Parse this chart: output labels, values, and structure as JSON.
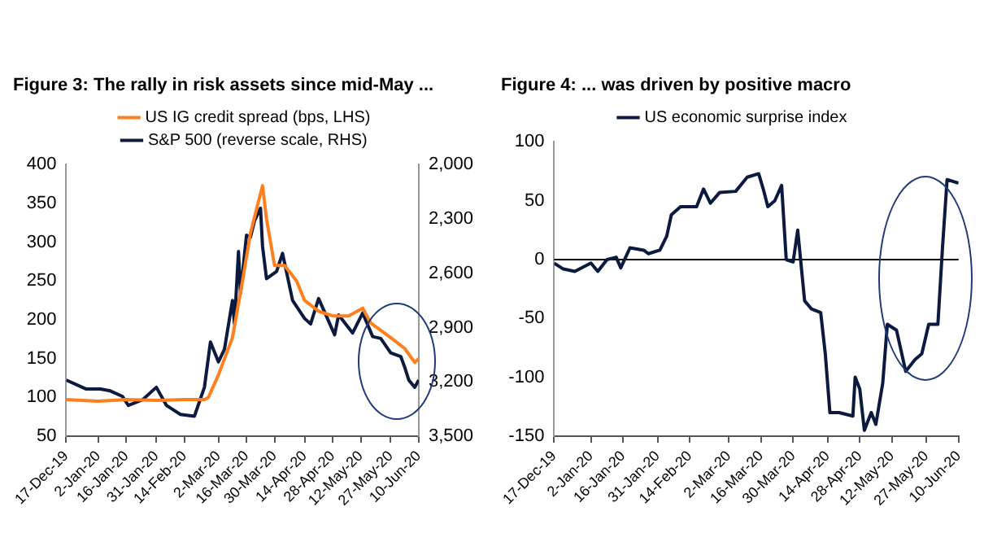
{
  "chart_data": [
    {
      "type": "line",
      "title": "Figure 3: The rally in risk assets since mid-May ...",
      "legend": "top",
      "grid": false,
      "marker": "none",
      "line_style": "solid",
      "xlim": [
        "2019-12-17",
        "2020-06-10"
      ],
      "xticks": [
        {
          "value": "2019-12-17",
          "label": "17-Dec-19"
        },
        {
          "value": "2020-01-02",
          "label": "2-Jan-20"
        },
        {
          "value": "2020-01-16",
          "label": "16-Jan-20"
        },
        {
          "value": "2020-01-31",
          "label": "31-Jan-20"
        },
        {
          "value": "2020-02-14",
          "label": "14-Feb-20"
        },
        {
          "value": "2020-03-02",
          "label": "2-Mar-20"
        },
        {
          "value": "2020-03-16",
          "label": "16-Mar-20"
        },
        {
          "value": "2020-03-30",
          "label": "30-Mar-20"
        },
        {
          "value": "2020-04-14",
          "label": "14-Apr-20"
        },
        {
          "value": "2020-04-28",
          "label": "28-Apr-20"
        },
        {
          "value": "2020-05-12",
          "label": "12-May-20"
        },
        {
          "value": "2020-05-27",
          "label": "27-May-20"
        },
        {
          "value": "2020-06-10",
          "label": "10-Jun-20"
        }
      ],
      "ylim": [
        50,
        400
      ],
      "yticks": [
        50,
        100,
        150,
        200,
        250,
        300,
        350,
        400
      ],
      "y2lim": [
        3500,
        2000
      ],
      "y2ticks": [
        {
          "value": 2000,
          "label": "2,000"
        },
        {
          "value": 2300,
          "label": "2,300"
        },
        {
          "value": 2600,
          "label": "2,600"
        },
        {
          "value": 2900,
          "label": "2,900"
        },
        {
          "value": 3200,
          "label": "3,200"
        },
        {
          "value": 3500,
          "label": "3,500"
        }
      ],
      "series": [
        {
          "name": "US IG credit spread (bps, LHS)",
          "color": "#ff7f1e",
          "x": [
            "2019-12-17",
            "2020-01-02",
            "2020-01-16",
            "2020-02-01",
            "2020-02-14",
            "2020-02-24",
            "2020-02-26",
            "2020-03-02",
            "2020-03-09",
            "2020-03-14",
            "2020-03-18",
            "2020-03-24",
            "2020-03-26",
            "2020-03-30",
            "2020-04-04",
            "2020-04-10",
            "2020-04-14",
            "2020-04-21",
            "2020-04-28",
            "2020-05-06",
            "2020-05-13",
            "2020-05-17",
            "2020-05-27",
            "2020-06-03",
            "2020-06-08",
            "2020-06-10"
          ],
          "values": [
            97,
            95,
            97,
            96,
            97,
            97,
            100,
            129,
            177,
            250,
            312,
            373,
            330,
            270,
            270,
            250,
            225,
            211,
            205,
            205,
            215,
            196,
            177,
            163,
            145,
            150
          ]
        },
        {
          "name": "S&P 500 (reverse scale, RHS)",
          "color": "#0c1a40",
          "axis": "y2",
          "x": [
            "2019-12-17",
            "2019-12-27",
            "2020-01-03",
            "2020-01-08",
            "2020-01-14",
            "2020-01-17",
            "2020-01-24",
            "2020-01-31",
            "2020-02-05",
            "2020-02-12",
            "2020-02-19",
            "2020-02-24",
            "2020-02-27",
            "2020-03-02",
            "2020-03-05",
            "2020-03-09",
            "2020-03-10",
            "2020-03-12",
            "2020-03-13",
            "2020-03-16",
            "2020-03-18",
            "2020-03-20",
            "2020-03-23",
            "2020-03-24",
            "2020-03-26",
            "2020-03-31",
            "2020-04-03",
            "2020-04-08",
            "2020-04-14",
            "2020-04-17",
            "2020-04-21",
            "2020-04-29",
            "2020-05-01",
            "2020-05-08",
            "2020-05-13",
            "2020-05-18",
            "2020-05-22",
            "2020-05-27",
            "2020-06-01",
            "2020-06-03",
            "2020-06-05",
            "2020-06-08",
            "2020-06-10"
          ],
          "values": [
            3190,
            3240,
            3240,
            3250,
            3280,
            3330,
            3300,
            3230,
            3330,
            3380,
            3390,
            3230,
            2980,
            3090,
            3020,
            2750,
            2880,
            2480,
            2710,
            2390,
            2400,
            2310,
            2240,
            2450,
            2630,
            2590,
            2490,
            2750,
            2850,
            2880,
            2740,
            2940,
            2830,
            2930,
            2820,
            2950,
            2960,
            3040,
            3060,
            3120,
            3190,
            3230,
            3190
          ]
        }
      ]
    },
    {
      "type": "line",
      "title": "Figure 4: ... was driven by positive macro",
      "legend": "top",
      "grid": false,
      "marker": "none",
      "line_style": "solid",
      "xlim": [
        "2019-12-17",
        "2020-06-10"
      ],
      "xticks": [
        {
          "value": "2019-12-17",
          "label": "17-Dec-19"
        },
        {
          "value": "2020-01-02",
          "label": "2-Jan-20"
        },
        {
          "value": "2020-01-16",
          "label": "16-Jan-20"
        },
        {
          "value": "2020-01-31",
          "label": "31-Jan-20"
        },
        {
          "value": "2020-02-14",
          "label": "14-Feb-20"
        },
        {
          "value": "2020-03-02",
          "label": "2-Mar-20"
        },
        {
          "value": "2020-03-16",
          "label": "16-Mar-20"
        },
        {
          "value": "2020-03-30",
          "label": "30-Mar-20"
        },
        {
          "value": "2020-04-14",
          "label": "14-Apr-20"
        },
        {
          "value": "2020-04-28",
          "label": "28-Apr-20"
        },
        {
          "value": "2020-05-12",
          "label": "12-May-20"
        },
        {
          "value": "2020-05-27",
          "label": "27-May-20"
        },
        {
          "value": "2020-06-10",
          "label": "10-Jun-20"
        }
      ],
      "ylim": [
        -150,
        100
      ],
      "yticks": [
        -150,
        -100,
        -50,
        0,
        50,
        100
      ],
      "ref_lines": [
        {
          "axis": "y",
          "value": 0,
          "color": "#000000"
        }
      ],
      "series": [
        {
          "name": "US economic surprise index",
          "color": "#0c1a40",
          "x": [
            "2019-12-17",
            "2019-12-21",
            "2019-12-26",
            "2020-01-02",
            "2020-01-05",
            "2020-01-09",
            "2020-01-13",
            "2020-01-15",
            "2020-01-19",
            "2020-01-25",
            "2020-01-27",
            "2020-02-01",
            "2020-02-04",
            "2020-02-06",
            "2020-02-10",
            "2020-02-17",
            "2020-02-20",
            "2020-02-23",
            "2020-02-27",
            "2020-03-05",
            "2020-03-10",
            "2020-03-15",
            "2020-03-17",
            "2020-03-19",
            "2020-03-22",
            "2020-03-25",
            "2020-03-27",
            "2020-03-30",
            "2020-04-01",
            "2020-04-04",
            "2020-04-07",
            "2020-04-11",
            "2020-04-13",
            "2020-04-15",
            "2020-04-19",
            "2020-04-25",
            "2020-04-26",
            "2020-04-28",
            "2020-04-30",
            "2020-05-03",
            "2020-05-05",
            "2020-05-08",
            "2020-05-10",
            "2020-05-14",
            "2020-05-18",
            "2020-05-22",
            "2020-05-25",
            "2020-05-28",
            "2020-06-01",
            "2020-06-03",
            "2020-06-05",
            "2020-06-10"
          ],
          "values": [
            -3,
            -8,
            -10,
            -3,
            -10,
            0,
            2,
            -7,
            10,
            8,
            5,
            8,
            20,
            38,
            45,
            45,
            60,
            48,
            57,
            58,
            70,
            73,
            60,
            45,
            50,
            63,
            0,
            -2,
            25,
            -35,
            -42,
            -45,
            -80,
            -130,
            -130,
            -133,
            -100,
            -110,
            -145,
            -130,
            -140,
            -105,
            -55,
            -60,
            -95,
            -85,
            -80,
            -55,
            -55,
            10,
            68,
            65
          ]
        }
      ]
    }
  ]
}
